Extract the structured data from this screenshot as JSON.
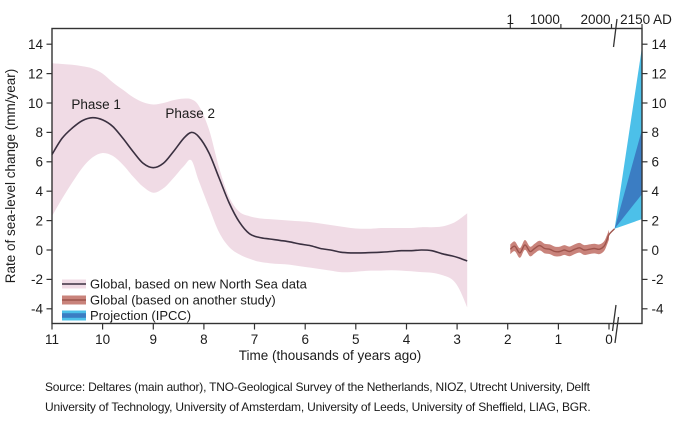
{
  "figure": {
    "y_axis": {
      "title": "Rate of sea-level change (mm/year)"
    },
    "x_axis_bottom": {
      "title": "Time (thousands of years ago)"
    },
    "legend": [
      {
        "label": "Global, based on new North Sea data",
        "type": "band-with-line",
        "band_color": "#f0dbe5",
        "line_color": "#3a3040"
      },
      {
        "label": "Global (based on another study)",
        "type": "band-with-line",
        "band_color": "#c9837b",
        "line_color": "#9e544c"
      },
      {
        "label": "Projection (IPCC)",
        "type": "double-band",
        "band_color": "#4cc0e9",
        "line_color": "#3b7dc3"
      }
    ],
    "palette": {
      "pink_band": "#f0dbe5",
      "pink_line": "#3a3040",
      "red_band": "#c9837b",
      "red_line": "#9e544c",
      "blue_light": "#4cc0e9",
      "blue_dark": "#3b7dc3",
      "axis": "#333333",
      "text": "#1c1c1c"
    }
  },
  "chart_data": {
    "type": "area",
    "title": "",
    "xlabel": "Time (thousands of years ago)",
    "ylabel": "Rate of sea-level change (mm/year)",
    "xlim_ka": [
      11,
      0
    ],
    "ylim": [
      -5,
      15.1
    ],
    "grid": false,
    "legend_position": "lower-left-inside",
    "x_ticks_ka": [
      11,
      10,
      9,
      8,
      7,
      6,
      5,
      4,
      3,
      2,
      1,
      0
    ],
    "y_ticks": [
      14,
      12,
      10,
      8,
      6,
      4,
      2,
      0,
      -2,
      -4
    ],
    "top_axis_ticks_ad": [
      {
        "label": "1",
        "year": 1
      },
      {
        "label": "1000",
        "year": 1000
      },
      {
        "label": "2000",
        "year": 2000
      },
      {
        "label": "2150 AD",
        "year": 2150
      }
    ],
    "axis_break": {
      "after_ka": 0,
      "resumes_year_ad": 2150
    },
    "annotations": [
      {
        "text": "Phase 1",
        "ka": 10.13,
        "value": 9.9
      },
      {
        "text": "Phase 2",
        "ka": 8.27,
        "value": 9.3
      }
    ],
    "series": [
      {
        "name": "Global, based on new North Sea data",
        "kind": "band-with-center-line",
        "x_ka": [
          11.0,
          10.8,
          10.6,
          10.4,
          10.2,
          10.0,
          9.8,
          9.6,
          9.4,
          9.2,
          9.0,
          8.8,
          8.6,
          8.4,
          8.25,
          8.1,
          7.9,
          7.7,
          7.5,
          7.3,
          7.1,
          6.9,
          6.7,
          6.5,
          6.3,
          6.1,
          5.9,
          5.7,
          5.5,
          5.3,
          5.1,
          4.9,
          4.7,
          4.5,
          4.3,
          4.1,
          3.9,
          3.7,
          3.5,
          3.3,
          3.1,
          2.95,
          2.8
        ],
        "center": [
          6.5,
          7.6,
          8.3,
          8.8,
          9.0,
          8.85,
          8.4,
          7.6,
          6.7,
          5.9,
          5.6,
          5.9,
          6.7,
          7.6,
          8.0,
          7.7,
          6.6,
          4.9,
          3.2,
          1.9,
          1.1,
          0.85,
          0.75,
          0.65,
          0.55,
          0.4,
          0.3,
          0.1,
          0.0,
          -0.15,
          -0.2,
          -0.2,
          -0.18,
          -0.15,
          -0.1,
          -0.05,
          -0.05,
          0.0,
          -0.05,
          -0.25,
          -0.4,
          -0.55,
          -0.75
        ],
        "upper": [
          12.7,
          12.65,
          12.6,
          12.5,
          12.35,
          12.0,
          11.4,
          10.9,
          10.4,
          10.05,
          9.9,
          10.0,
          10.2,
          10.3,
          10.25,
          9.8,
          8.2,
          5.6,
          3.6,
          2.6,
          2.3,
          2.15,
          2.1,
          2.05,
          2.0,
          1.95,
          1.9,
          1.8,
          1.7,
          1.6,
          1.5,
          1.45,
          1.45,
          1.5,
          1.5,
          1.5,
          1.5,
          1.55,
          1.55,
          1.6,
          1.8,
          2.1,
          2.5
        ],
        "lower": [
          2.3,
          3.5,
          4.6,
          5.6,
          6.3,
          6.6,
          6.4,
          5.8,
          5.0,
          4.3,
          3.9,
          4.2,
          4.9,
          5.7,
          6.1,
          4.7,
          2.9,
          1.2,
          0.2,
          -0.3,
          -0.6,
          -0.8,
          -0.9,
          -0.95,
          -1.0,
          -1.1,
          -1.2,
          -1.3,
          -1.4,
          -1.5,
          -1.5,
          -1.45,
          -1.4,
          -1.4,
          -1.38,
          -1.4,
          -1.45,
          -1.5,
          -1.55,
          -1.7,
          -2.0,
          -2.7,
          -3.9
        ]
      },
      {
        "name": "Global (based on another study)",
        "kind": "band-with-center-line",
        "half_width": 0.33,
        "x_ka": [
          1.95,
          1.86,
          1.76,
          1.66,
          1.56,
          1.47,
          1.37,
          1.27,
          1.17,
          1.07,
          0.97,
          0.88,
          0.78,
          0.68,
          0.58,
          0.49,
          0.39,
          0.29,
          0.19,
          0.1,
          0.05,
          0.0
        ],
        "center": [
          0.05,
          0.25,
          -0.2,
          0.35,
          -0.1,
          0.1,
          0.3,
          0.1,
          0.05,
          -0.1,
          -0.1,
          0.0,
          -0.1,
          0.05,
          0.15,
          0.0,
          0.05,
          0.1,
          0.05,
          0.25,
          0.6,
          1.05
        ],
        "tail": {
          "year": 2015,
          "value": 1.45
        }
      },
      {
        "name": "Projection (IPCC)",
        "kind": "fan",
        "apex": {
          "year": 2015,
          "value": 1.45
        },
        "at_year": 2150,
        "outer_range": [
          2.1,
          13.8
        ],
        "inner_range": [
          3.8,
          8.2
        ]
      }
    ]
  },
  "source": {
    "line1": "Source: Deltares (main author), TNO-Geological Survey of the Netherlands, NIOZ, Utrecht University, Delft",
    "line2": "University of Technology, University of Amsterdam, University of Leeds, University of Sheffield, LIAG, BGR."
  }
}
